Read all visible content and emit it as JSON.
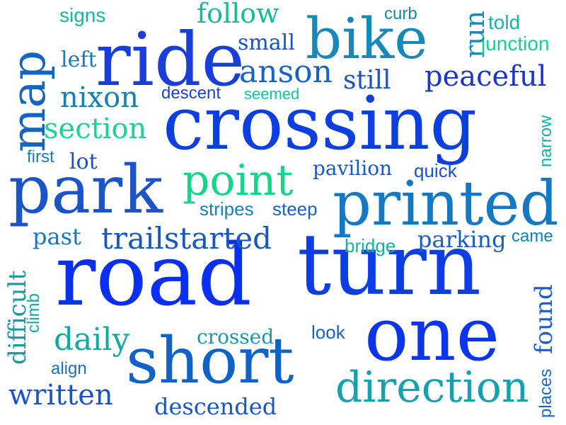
{
  "words": {
    "map": {
      "text": "map",
      "color": "#1565c0"
    },
    "ride": {
      "text": "ride",
      "color": "#1a3fd6"
    },
    "bike": {
      "text": "bike",
      "color": "#1788b8"
    },
    "crossing": {
      "text": "crossing",
      "color": "#0c3fe0"
    },
    "park": {
      "text": "park",
      "color": "#1a54c8"
    },
    "printed": {
      "text": "printed",
      "color": "#1478c2"
    },
    "road": {
      "text": "road",
      "color": "#0a2ff0"
    },
    "turn": {
      "text": "turn",
      "color": "#0c3ee4"
    },
    "one": {
      "text": "one",
      "color": "#0c34ea"
    },
    "short": {
      "text": "short",
      "color": "#0f62c8"
    },
    "direction": {
      "text": "direction",
      "color": "#16a0b0"
    },
    "point": {
      "text": "point",
      "color": "#14d68a"
    },
    "peaceful": {
      "text": "peaceful",
      "color": "#1a36cc"
    },
    "anson": {
      "text": "anson",
      "color": "#1763c7"
    },
    "follow": {
      "text": "follow",
      "color": "#16bb9a"
    },
    "trailstarted": {
      "text": "trailstarted",
      "color": "#1757be"
    },
    "section": {
      "text": "section",
      "color": "#18d490"
    },
    "nixon": {
      "text": "nixon",
      "color": "#1880b0"
    },
    "daily": {
      "text": "daily",
      "color": "#16a8a0"
    },
    "written": {
      "text": "written",
      "color": "#1a52cc"
    },
    "descended": {
      "text": "descended",
      "color": "#1a54c6"
    },
    "difficult": {
      "text": "difficult",
      "color": "#1898a2"
    },
    "found": {
      "text": "found",
      "color": "#1c5ec6"
    },
    "run": {
      "text": "run",
      "color": "#1a88b8"
    },
    "narrow": {
      "text": "narrow",
      "color": "#16b0a6"
    },
    "places": {
      "text": "places",
      "color": "#1868c2"
    },
    "climb": {
      "text": "climb",
      "color": "#18a8a8"
    },
    "pavilion": {
      "text": "pavilion",
      "color": "#1a58c6"
    },
    "quick": {
      "text": "quick",
      "color": "#1852c6"
    },
    "stripes": {
      "text": "stripes",
      "color": "#1880b4"
    },
    "steep": {
      "text": "steep",
      "color": "#1a62c2"
    },
    "bridge": {
      "text": "bridge",
      "color": "#16b09e"
    },
    "parking": {
      "text": "parking",
      "color": "#1a5cc4"
    },
    "came": {
      "text": "came",
      "color": "#1480b8"
    },
    "past": {
      "text": "past",
      "color": "#1a74be"
    },
    "crossed": {
      "text": "crossed",
      "color": "#1898a8"
    },
    "look": {
      "text": "look",
      "color": "#1a62c2"
    },
    "align": {
      "text": "align",
      "color": "#1a72be"
    },
    "first": {
      "text": "first",
      "color": "#1a7cb8"
    },
    "lot": {
      "text": "lot",
      "color": "#1a50c6"
    },
    "descent": {
      "text": "descent",
      "color": "#1c44cc"
    },
    "seemed": {
      "text": "seemed",
      "color": "#14c4a2"
    },
    "still": {
      "text": "still",
      "color": "#1a52c8"
    },
    "small": {
      "text": "small",
      "color": "#1852c6"
    },
    "signs": {
      "text": "signs",
      "color": "#16b8a4"
    },
    "left": {
      "text": "left",
      "color": "#1a78b8"
    },
    "curb": {
      "text": "curb",
      "color": "#1c86b0"
    },
    "told": {
      "text": "told",
      "color": "#14b4a4"
    },
    "junction": {
      "text": "junction",
      "color": "#12d28e"
    }
  }
}
